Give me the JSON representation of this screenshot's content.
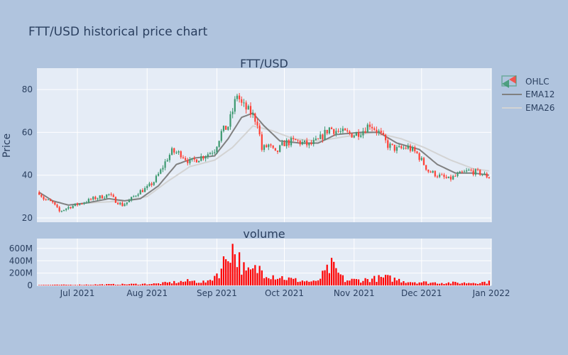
{
  "page_title": "FTT/USD historical price chart",
  "chart_data": [
    {
      "type": "candlestick",
      "title": "FTT/USD",
      "ylabel": "Price",
      "ylim": [
        18,
        90
      ],
      "yticks": [
        20,
        40,
        60,
        80
      ],
      "x_range": [
        "2021-06-13",
        "2022-01-01"
      ],
      "xticks": [
        "2021-07-01",
        "2021-08-01",
        "2021-09-01",
        "2021-10-01",
        "2021-11-01",
        "2021-12-01",
        "2022-01-01"
      ],
      "xtick_labels": [
        "Jul 2021",
        "Aug 2021",
        "Sep 2021",
        "Oct 2021",
        "Nov 2021",
        "Dec 2021",
        "Jan 2022"
      ],
      "colors": {
        "increasing": "#3d9970",
        "decreasing": "#ff4136",
        "ema12": "#808080",
        "ema26": "#d3d3d3"
      },
      "legend": [
        "OHLC",
        "EMA12",
        "EMA26"
      ],
      "legend_position": "top-right",
      "grid": true,
      "series": [
        {
          "name": "OHLC",
          "close_keypoints": [
            [
              "2021-06-14",
              32
            ],
            [
              "2021-06-16",
              29
            ],
            [
              "2021-06-20",
              27
            ],
            [
              "2021-06-23",
              23
            ],
            [
              "2021-06-27",
              25
            ],
            [
              "2021-07-03",
              27
            ],
            [
              "2021-07-08",
              29
            ],
            [
              "2021-07-12",
              30
            ],
            [
              "2021-07-15",
              31
            ],
            [
              "2021-07-18",
              28
            ],
            [
              "2021-07-21",
              26
            ],
            [
              "2021-07-24",
              28
            ],
            [
              "2021-07-28",
              32
            ],
            [
              "2021-08-01",
              34
            ],
            [
              "2021-08-04",
              37
            ],
            [
              "2021-08-07",
              42
            ],
            [
              "2021-08-10",
              48
            ],
            [
              "2021-08-12",
              51
            ],
            [
              "2021-08-16",
              50
            ],
            [
              "2021-08-20",
              46
            ],
            [
              "2021-08-24",
              48
            ],
            [
              "2021-08-28",
              50
            ],
            [
              "2021-08-31",
              52
            ],
            [
              "2021-09-03",
              60
            ],
            [
              "2021-09-06",
              63
            ],
            [
              "2021-09-08",
              70
            ],
            [
              "2021-09-10",
              78
            ],
            [
              "2021-09-12",
              73
            ],
            [
              "2021-09-16",
              69
            ],
            [
              "2021-09-19",
              65
            ],
            [
              "2021-09-21",
              52
            ],
            [
              "2021-09-24",
              54
            ],
            [
              "2021-09-27",
              50
            ],
            [
              "2021-10-01",
              55
            ],
            [
              "2021-10-06",
              56
            ],
            [
              "2021-10-12",
              54
            ],
            [
              "2021-10-16",
              56
            ],
            [
              "2021-10-21",
              62
            ],
            [
              "2021-10-26",
              60
            ],
            [
              "2021-11-01",
              59
            ],
            [
              "2021-11-05",
              61
            ],
            [
              "2021-11-08",
              64
            ],
            [
              "2021-11-12",
              60
            ],
            [
              "2021-11-16",
              54
            ],
            [
              "2021-11-20",
              52
            ],
            [
              "2021-11-25",
              53
            ],
            [
              "2021-11-29",
              50
            ],
            [
              "2021-12-04",
              42
            ],
            [
              "2021-12-08",
              40
            ],
            [
              "2021-12-13",
              38
            ],
            [
              "2021-12-17",
              40
            ],
            [
              "2021-12-22",
              42
            ],
            [
              "2021-12-27",
              41
            ],
            [
              "2021-12-31",
              39
            ]
          ]
        },
        {
          "name": "EMA12",
          "keypoints": [
            [
              "2021-06-14",
              32
            ],
            [
              "2021-06-20",
              28
            ],
            [
              "2021-06-27",
              26
            ],
            [
              "2021-07-05",
              27
            ],
            [
              "2021-07-15",
              29
            ],
            [
              "2021-07-22",
              28
            ],
            [
              "2021-07-29",
              29
            ],
            [
              "2021-08-06",
              35
            ],
            [
              "2021-08-14",
              45
            ],
            [
              "2021-08-22",
              48
            ],
            [
              "2021-08-31",
              49
            ],
            [
              "2021-09-06",
              57
            ],
            [
              "2021-09-12",
              67
            ],
            [
              "2021-09-17",
              69
            ],
            [
              "2021-09-22",
              63
            ],
            [
              "2021-09-29",
              56
            ],
            [
              "2021-10-08",
              55
            ],
            [
              "2021-10-16",
              55
            ],
            [
              "2021-10-24",
              59
            ],
            [
              "2021-11-04",
              60
            ],
            [
              "2021-11-12",
              60
            ],
            [
              "2021-11-20",
              55
            ],
            [
              "2021-11-30",
              52
            ],
            [
              "2021-12-08",
              45
            ],
            [
              "2021-12-16",
              41
            ],
            [
              "2021-12-24",
              41
            ],
            [
              "2021-12-31",
              40
            ]
          ]
        },
        {
          "name": "EMA26",
          "keypoints": [
            [
              "2021-07-06",
              27
            ],
            [
              "2021-07-22",
              28
            ],
            [
              "2021-08-01",
              30
            ],
            [
              "2021-08-10",
              37
            ],
            [
              "2021-08-20",
              44
            ],
            [
              "2021-08-31",
              47
            ],
            [
              "2021-09-08",
              53
            ],
            [
              "2021-09-17",
              63
            ],
            [
              "2021-09-25",
              61
            ],
            [
              "2021-10-05",
              57
            ],
            [
              "2021-10-16",
              56
            ],
            [
              "2021-10-28",
              58
            ],
            [
              "2021-11-10",
              60
            ],
            [
              "2021-11-22",
              57
            ],
            [
              "2021-12-02",
              53
            ],
            [
              "2021-12-14",
              47
            ],
            [
              "2021-12-24",
              43
            ],
            [
              "2021-12-31",
              42
            ]
          ]
        }
      ]
    },
    {
      "type": "bar",
      "title": "volume",
      "ylim": [
        0,
        760
      ],
      "yticks": [
        0,
        200,
        400,
        600
      ],
      "ytick_labels": [
        "0",
        "200M",
        "400M",
        "600M"
      ],
      "value_unit": "M",
      "color": "#ff0000",
      "keypoints": [
        [
          "2021-06-13",
          8
        ],
        [
          "2021-07-01",
          12
        ],
        [
          "2021-07-20",
          20
        ],
        [
          "2021-08-05",
          30
        ],
        [
          "2021-08-20",
          80
        ],
        [
          "2021-08-28",
          60
        ],
        [
          "2021-09-03",
          290
        ],
        [
          "2021-09-07",
          720
        ],
        [
          "2021-09-09",
          600
        ],
        [
          "2021-09-14",
          220
        ],
        [
          "2021-09-20",
          300
        ],
        [
          "2021-09-26",
          180
        ],
        [
          "2021-10-05",
          100
        ],
        [
          "2021-10-15",
          60
        ],
        [
          "2021-10-22",
          340
        ],
        [
          "2021-10-28",
          90
        ],
        [
          "2021-11-05",
          100
        ],
        [
          "2021-11-15",
          140
        ],
        [
          "2021-11-25",
          70
        ],
        [
          "2021-12-05",
          50
        ],
        [
          "2021-12-20",
          45
        ],
        [
          "2021-12-31",
          60
        ]
      ]
    }
  ]
}
